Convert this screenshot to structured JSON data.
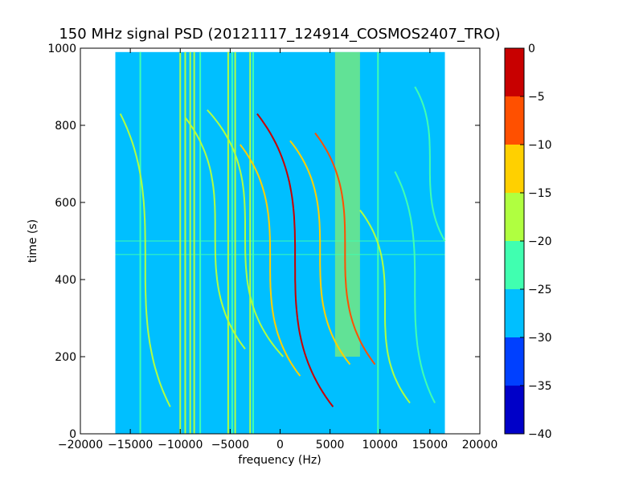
{
  "chart_data": {
    "type": "heatmap",
    "title": "150 MHz signal PSD (20121117_124914_COSMOS2407_TRO)",
    "xlabel": "frequency (Hz)",
    "ylabel": "time (s)",
    "xlim": [
      -20000,
      20000
    ],
    "ylim": [
      0,
      1000
    ],
    "xticks": [
      -20000,
      -15000,
      -10000,
      -5000,
      0,
      5000,
      10000,
      15000,
      20000
    ],
    "xtick_labels": [
      "−20000",
      "−15000",
      "−10000",
      "−5000",
      "0",
      "5000",
      "10000",
      "15000",
      "20000"
    ],
    "yticks": [
      0,
      200,
      400,
      600,
      800,
      1000
    ],
    "ytick_labels": [
      "0",
      "200",
      "400",
      "600",
      "800",
      "1000"
    ],
    "data_extent": {
      "freq": [
        -16500,
        16500
      ],
      "time": [
        0,
        990
      ]
    },
    "background_level": -27.5,
    "colorbar": {
      "levels": [
        -40,
        -35,
        -30,
        -25,
        -20,
        -15,
        -10,
        -5,
        0
      ],
      "tick_labels": [
        "−40",
        "−35",
        "−30",
        "−25",
        "−20",
        "−15",
        "−10",
        "−5",
        "0"
      ],
      "colors": [
        "#0000c8",
        "#0040ff",
        "#00bfff",
        "#40ffb0",
        "#b0ff40",
        "#ffd000",
        "#ff5000",
        "#c80000"
      ]
    },
    "constant_carriers": [
      {
        "freq": -14000,
        "level": -22.5
      },
      {
        "freq": -10000,
        "level": -17.5
      },
      {
        "freq": -9500,
        "level": -17.5
      },
      {
        "freq": -9000,
        "level": -17.5
      },
      {
        "freq": -8600,
        "level": -17.5
      },
      {
        "freq": -8000,
        "level": -22.5
      },
      {
        "freq": -5200,
        "level": -17.5
      },
      {
        "freq": -4800,
        "level": -22.5
      },
      {
        "freq": -4500,
        "level": -17.5
      },
      {
        "freq": -3000,
        "level": -17.5
      },
      {
        "freq": -2700,
        "level": -22.5
      },
      {
        "freq": 9800,
        "level": -22.5
      }
    ],
    "doppler_tracks": [
      {
        "center_freq": 1500,
        "center_time": 450,
        "half_span_freq": 3800,
        "half_span_time": 380,
        "level": -2.5
      },
      {
        "center_freq": -1000,
        "center_time": 450,
        "half_span_freq": 3000,
        "half_span_time": 300,
        "level": -12.5
      },
      {
        "center_freq": -3500,
        "center_time": 520,
        "half_span_freq": 3800,
        "half_span_time": 320,
        "level": -17.5
      },
      {
        "center_freq": 4000,
        "center_time": 470,
        "half_span_freq": 3000,
        "half_span_time": 290,
        "level": -12.5
      },
      {
        "center_freq": 6500,
        "center_time": 480,
        "half_span_freq": 3000,
        "half_span_time": 300,
        "level": -7.5
      },
      {
        "center_freq": -6500,
        "center_time": 520,
        "half_span_freq": 3000,
        "half_span_time": 300,
        "level": -17.5
      },
      {
        "center_freq": 10500,
        "center_time": 330,
        "half_span_freq": 2500,
        "half_span_time": 250,
        "level": -17.5
      },
      {
        "center_freq": 13500,
        "center_time": 380,
        "half_span_freq": 2000,
        "half_span_time": 300,
        "level": -22.5
      },
      {
        "center_freq": -13500,
        "center_time": 450,
        "half_span_freq": 2500,
        "half_span_time": 380,
        "level": -17.5
      },
      {
        "center_freq": 15000,
        "center_time": 700,
        "half_span_freq": 1500,
        "half_span_time": 200,
        "level": -22.5
      }
    ],
    "broadband_noise_region": {
      "freq": [
        5500,
        8000
      ],
      "time": [
        200,
        990
      ],
      "level": -17.5
    },
    "horizontal_bands": [
      {
        "time": 500,
        "level": -22.5
      },
      {
        "time": 465,
        "level": -22.5
      }
    ]
  }
}
